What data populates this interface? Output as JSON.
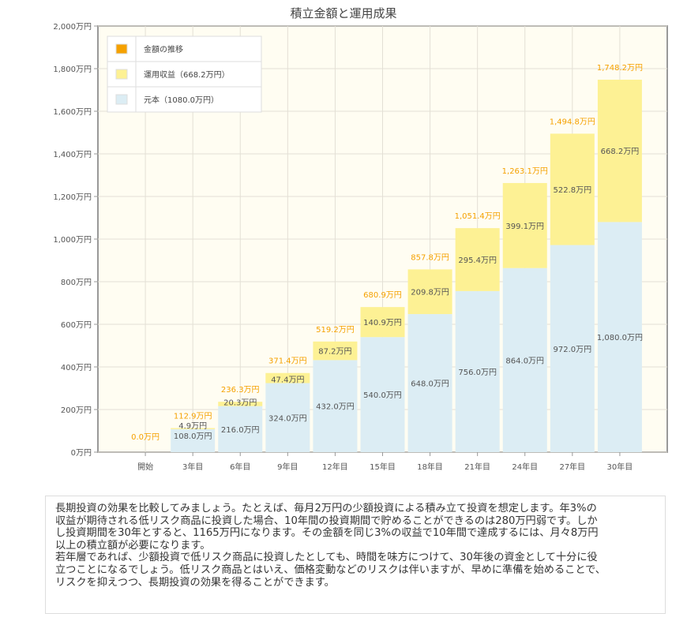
{
  "chart_data": {
    "type": "bar",
    "stacked": true,
    "title": "積立金額と運用成果",
    "categories": [
      "開始",
      "3年目",
      "6年目",
      "9年目",
      "12年目",
      "15年目",
      "18年目",
      "21年目",
      "24年目",
      "27年目",
      "30年目"
    ],
    "series": [
      {
        "name": "元本（1080.0万円）",
        "color": "#dcedf4",
        "values": [
          0,
          108.0,
          216.0,
          324.0,
          432.0,
          540.0,
          648.0,
          756.0,
          864.0,
          972.0,
          1080.0
        ]
      },
      {
        "name": "運用収益（668.2万円）",
        "color": "#fdf194",
        "values": [
          0,
          4.9,
          20.3,
          47.4,
          87.2,
          140.9,
          209.8,
          295.4,
          399.1,
          522.8,
          668.2
        ]
      }
    ],
    "totals": {
      "name": "金額の推移",
      "color": "#f5a100",
      "values": [
        0.0,
        112.9,
        236.3,
        371.4,
        519.2,
        680.9,
        857.8,
        1051.4,
        1263.1,
        1494.8,
        1748.2
      ]
    },
    "value_labels": {
      "principal": [
        "",
        "108.0万円",
        "216.0万円",
        "324.0万円",
        "432.0万円",
        "540.0万円",
        "648.0万円",
        "756.0万円",
        "864.0万円",
        "972.0万円",
        "1,080.0万円"
      ],
      "profit": [
        "",
        "4.9万円",
        "20.3万円",
        "47.4万円",
        "87.2万円",
        "140.9万円",
        "209.8万円",
        "295.4万円",
        "399.1万円",
        "522.8万円",
        "668.2万円"
      ],
      "total": [
        "0.0万円",
        "112.9万円",
        "236.3万円",
        "371.4万円",
        "519.2万円",
        "680.9万円",
        "857.8万円",
        "1,051.4万円",
        "1,263.1万円",
        "1,494.8万円",
        "1,748.2万円"
      ]
    },
    "ylim": [
      0,
      2000
    ],
    "yticks": [
      0,
      200,
      400,
      600,
      800,
      1000,
      1200,
      1400,
      1600,
      1800,
      2000
    ],
    "ytick_labels": [
      "0万円",
      "200万円",
      "400万円",
      "600万円",
      "800万円",
      "1,000万円",
      "1,200万円",
      "1,400万円",
      "1,600万円",
      "1,800万円",
      "2,000万円"
    ],
    "xlabel": "",
    "ylabel": "",
    "grid": true,
    "legend": "top-left",
    "legend_entries": [
      "金額の推移",
      "運用収益（668.2万円）",
      "元本（1080.0万円）"
    ]
  },
  "description": {
    "paragraphs": [
      [
        "長期投資の効果を比較してみましょう。たとえば、毎月2万円の少額投資による積み立て投資を想定します。年3%の",
        "収益が期待される低リスク商品に投資した場合、10年間の投資期間で貯めることができるのは280万円弱です。しか",
        "し投資期間を30年とすると、1165万円になります。その金額を同じ3%の収益で10年間で達成するには、月々8万円",
        "以上の積立額が必要になります。"
      ],
      [
        "若年層であれば、少額投資で低リスク商品に投資したとしても、時間を味方につけて、30年後の資金として十分に役",
        "立つことになるでしょう。低リスク商品とはいえ、価格変動などのリスクは伴いますが、早めに準備を始めることで、",
        "リスクを抑えつつ、長期投資の効果を得ることができます。"
      ]
    ]
  }
}
